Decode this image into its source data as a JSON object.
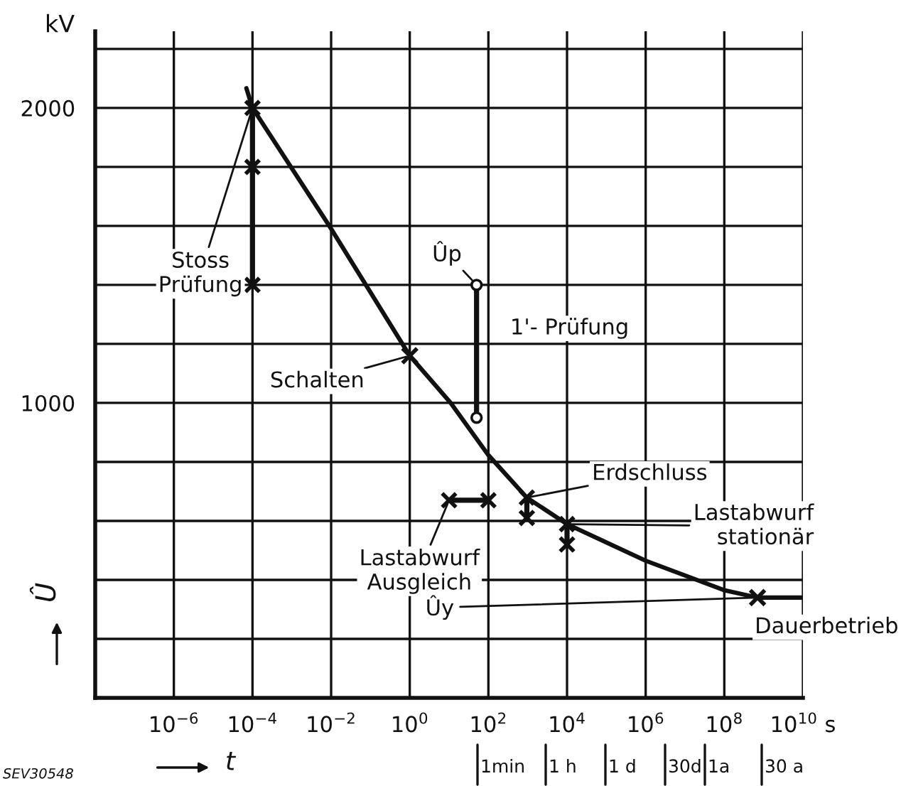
{
  "chart_data": {
    "type": "line",
    "xlabel": "t",
    "ylabel": "Û",
    "log": "x",
    "grid": true,
    "xlim": [
      1e-08,
      10000000000.0
    ],
    "ylim": [
      0,
      2260
    ],
    "xticks": [
      {
        "value": 1e-06,
        "label": "10$^{−6}$"
      },
      {
        "value": 0.0001,
        "label": "10$^{−4}$"
      },
      {
        "value": 0.01,
        "label": "10$^{−2}$"
      },
      {
        "value": 1,
        "label": "10$^{0}$"
      },
      {
        "value": 100,
        "label": "10$^{2}$"
      },
      {
        "value": 10000,
        "label": "10$^{4}$"
      },
      {
        "value": 1000000,
        "label": "10$^{6}$"
      },
      {
        "value": 100000000,
        "label": "10$^{8}$"
      },
      {
        "value": 10000000000,
        "label": "10$^{10}$ s"
      }
    ],
    "yticks": [
      {
        "value": 200,
        "label": null
      },
      {
        "value": 400,
        "label": null
      },
      {
        "value": 600,
        "label": null
      },
      {
        "value": 800,
        "label": null
      },
      1000,
      {
        "value": 1200,
        "label": null
      },
      {
        "value": 1400,
        "label": null
      },
      {
        "value": 1600,
        "label": null
      },
      {
        "value": 1800,
        "label": null
      },
      2000,
      {
        "value": 2200,
        "label": null
      }
    ],
    "series": [
      {
        "marker": "none",
        "color": "#111111",
        "x": [
          7e-05,
          0.0001,
          0.009,
          1,
          11,
          100,
          950,
          10000,
          1000000,
          100000000,
          700000000,
          10000000000
        ],
        "values": [
          2067,
          2000,
          1600,
          1160,
          1000,
          823,
          679,
          589,
          465,
          365,
          340,
          340
        ]
      },
      {
        "type": "line",
        "marker": "cross",
        "name": "Stoss\nPrüfung",
        "color": "#111111",
        "x": [
          0.0001,
          0.0001,
          0.0001
        ],
        "values": [
          2000,
          1800,
          1400
        ]
      },
      {
        "type": "line",
        "marker": "circle",
        "name": "1'- Prüfung",
        "color": "#111111",
        "x": [
          50,
          50
        ],
        "values": [
          1400,
          950
        ]
      },
      {
        "type": "scatter",
        "marker": "cross",
        "name": "Schalten",
        "color": "#111111",
        "x": [
          1
        ],
        "values": [
          1160
        ]
      },
      {
        "type": "line",
        "marker": "cross",
        "name": "Lastabwurf\nAusgleich",
        "color": "#111111",
        "x": [
          10,
          100
        ],
        "values": [
          670,
          670
        ]
      },
      {
        "type": "line",
        "marker": "cross",
        "name": "Erdschluss",
        "color": "#111111",
        "x": [
          950,
          950
        ],
        "values": [
          679,
          610
        ]
      },
      {
        "type": "line",
        "marker": "cross",
        "name": "Lastabwurf\nstationär",
        "color": "#111111",
        "x": [
          10000,
          10000
        ],
        "values": [
          589,
          520
        ]
      },
      {
        "type": "scatter",
        "marker": "cross",
        "name": "Dauerbetrieb",
        "color": "#111111",
        "x": [
          700000000
        ],
        "values": [
          340
        ]
      }
    ],
    "annotations": [
      "kV",
      "SEV30548",
      "1min",
      "1 h",
      "1 d",
      "30d",
      "1a",
      "30 a",
      {
        "text": "Ûp",
        "x": 50,
        "y": 1400
      },
      {
        "text": "Ûy",
        "x": 700000000,
        "y": 340
      }
    ]
  }
}
